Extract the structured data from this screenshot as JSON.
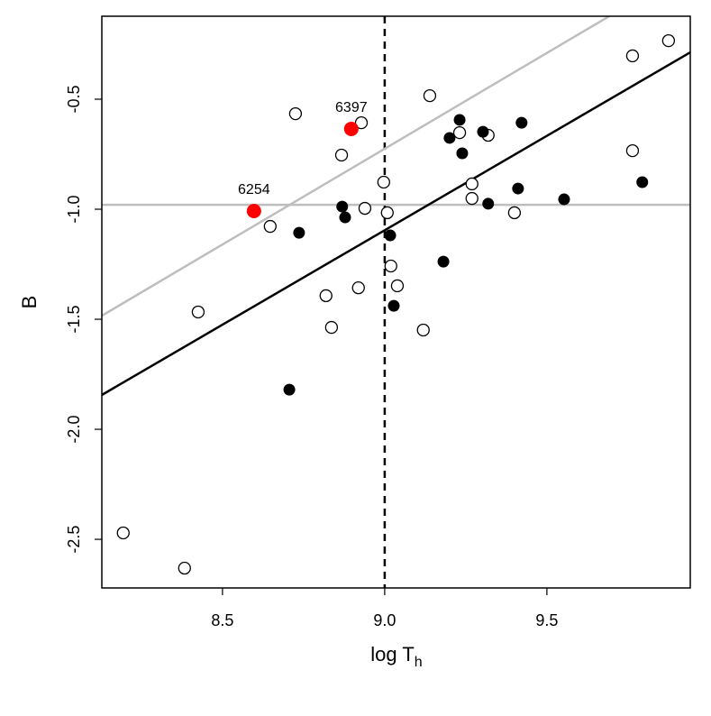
{
  "chart_data": {
    "type": "scatter",
    "xlabel": "log T",
    "xlabel_subscript": "h",
    "ylabel": "B",
    "xlim": [
      8.128,
      9.942
    ],
    "ylim": [
      -2.721,
      -0.123
    ],
    "xticks": [
      8.5,
      {
        "value": 9,
        "label": "9.0"
      },
      9.5
    ],
    "yticks": [
      -0.5,
      {
        "value": -1,
        "label": "-1.0"
      },
      -1.5,
      {
        "value": -2,
        "label": "-2.0"
      },
      -2.5
    ],
    "grid": false,
    "series": [
      {
        "marker": "open",
        "color": "#000000",
        "x": [
          9.875,
          9.764,
          9.139,
          8.725,
          8.928,
          9.231,
          9.319,
          8.867,
          9.764,
          8.997,
          9.269,
          9.269,
          8.939,
          9.008,
          9.4,
          8.647,
          9.019,
          9.039,
          8.919,
          8.819,
          8.425,
          8.836,
          9.119,
          8.194,
          8.383
        ],
        "y": [
          -0.234,
          -0.303,
          -0.484,
          -0.566,
          -0.607,
          -0.652,
          -0.664,
          -0.754,
          -0.734,
          -0.877,
          -0.951,
          -0.885,
          -0.996,
          -1.016,
          -1.016,
          -1.078,
          -1.258,
          -1.348,
          -1.357,
          -1.393,
          -1.467,
          -1.537,
          -1.549,
          -2.471,
          -2.631
        ]
      },
      {
        "marker": "filled",
        "color": "#000000",
        "x": [
          9.231,
          9.422,
          9.303,
          9.2,
          9.239,
          9.411,
          9.553,
          9.794,
          9.319,
          8.869,
          8.878,
          8.736,
          9.017,
          9.181,
          9.028,
          8.706
        ],
        "y": [
          -0.594,
          -0.607,
          -0.648,
          -0.676,
          -0.746,
          -0.906,
          -0.955,
          -0.877,
          -0.975,
          -0.988,
          -1.037,
          -1.107,
          -1.119,
          -1.238,
          -1.439,
          -1.82
        ]
      },
      {
        "marker": "filled",
        "color": "#ff0000",
        "x": [
          8.597,
          8.897
        ],
        "y": [
          -1.008,
          -0.635
        ],
        "labels": [
          "6254",
          "6397"
        ]
      }
    ],
    "lines": [
      {
        "color": "#000000",
        "x": [
          8.128,
          9.942
        ],
        "y": [
          -1.844,
          -0.287
        ]
      },
      {
        "color": "#bebebe",
        "x": [
          8.128,
          9.692
        ],
        "y": [
          -1.484,
          -0.123
        ]
      }
    ],
    "hlines": [
      {
        "color": "#bebebe",
        "y": -0.98
      }
    ],
    "vlines": [
      {
        "color": "#000000",
        "x": 9,
        "dashed": true
      }
    ]
  }
}
